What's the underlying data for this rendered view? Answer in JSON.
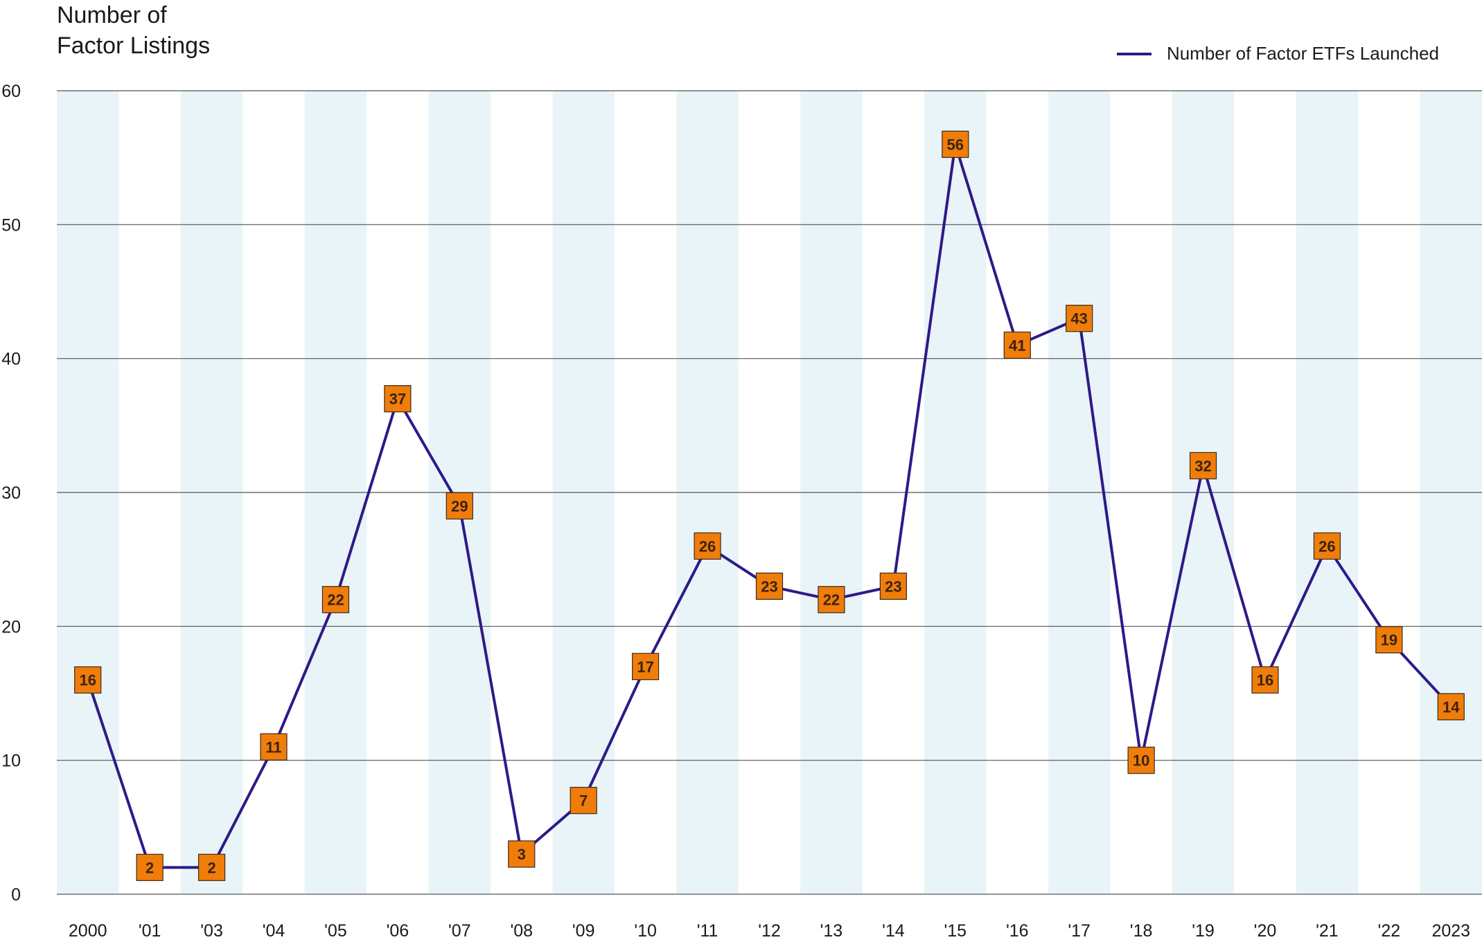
{
  "chart_data": {
    "type": "line",
    "ylabel": "Number of\nFactor Listings",
    "xlabel": "",
    "categories": [
      "2000",
      "'01",
      "'03",
      "'04",
      "'05",
      "'06",
      "'07",
      "'08",
      "'09",
      "'10",
      "'11",
      "'12",
      "'13",
      "'14",
      "'15",
      "'16",
      "'17",
      "'18",
      "'19",
      "'20",
      "'21",
      "'22",
      "2023"
    ],
    "series": [
      {
        "name": "Number of Factor ETFs Launched",
        "values": [
          16,
          2,
          2,
          11,
          22,
          37,
          29,
          3,
          7,
          17,
          26,
          23,
          22,
          23,
          56,
          41,
          43,
          10,
          32,
          16,
          26,
          19,
          14
        ],
        "color": "#2e1a87",
        "marker_color": "#f07d0a"
      }
    ],
    "ylim": [
      0,
      60
    ],
    "yticks": [
      0,
      10,
      20,
      30,
      40,
      50,
      60
    ],
    "grid": true,
    "band_color": "#e8f4f8",
    "legend_position": "top-right"
  }
}
